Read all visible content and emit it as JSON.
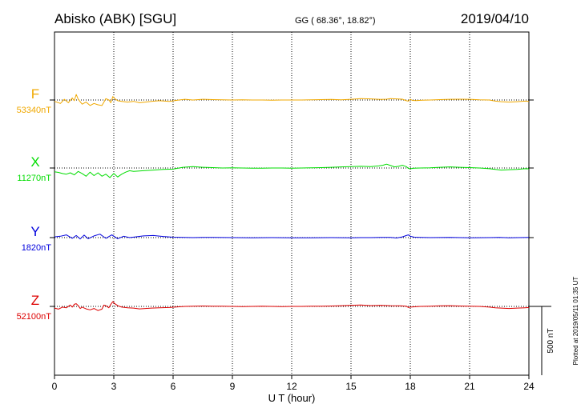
{
  "chart_data": {
    "type": "line",
    "title": "Abisko (ABK)  [SGU]",
    "coords": "GG ( 68.36°,  18.82°)",
    "date": "2019/04/10",
    "xlabel": "U T (hour)",
    "xlim": [
      0,
      24
    ],
    "xticks": [
      "0",
      "3",
      "6",
      "9",
      "12",
      "15",
      "18",
      "21",
      "24"
    ],
    "grid": true,
    "scale_label": "500 nT",
    "scale_nT": 500,
    "plotted_note": "Plotted at 2019/05/11 01:35 UT",
    "series": [
      {
        "name": "F",
        "baseline_label": "53340nT",
        "color": "#f0a800",
        "x": [
          0,
          0.3,
          0.5,
          0.7,
          0.9,
          1.0,
          1.1,
          1.2,
          1.4,
          1.6,
          1.8,
          2.0,
          2.2,
          2.4,
          2.5,
          2.6,
          2.75,
          2.85,
          2.95,
          3.05,
          3.2,
          3.4,
          3.7,
          4.0,
          4.3,
          4.6,
          4.9,
          5.3,
          5.8,
          6.3,
          6.6,
          7.0,
          7.5,
          8.0,
          8.5,
          9.0,
          9.5,
          10.0,
          10.5,
          11.0,
          11.5,
          12.0,
          12.5,
          13.0,
          13.5,
          14.0,
          14.5,
          15.0,
          15.5,
          16.0,
          16.5,
          16.8,
          17.0,
          17.3,
          17.6,
          17.8,
          17.9,
          18.0,
          18.1,
          18.3,
          18.6,
          19.0,
          19.5,
          20.0,
          20.5,
          21.0,
          21.5,
          22.0,
          22.3,
          22.6,
          23.0,
          23.4,
          23.8,
          24.0
        ],
        "y": [
          -10,
          -25,
          5,
          -20,
          15,
          -5,
          40,
          5,
          -30,
          -15,
          -40,
          -25,
          -35,
          -40,
          -15,
          10,
          0,
          -20,
          25,
          10,
          -5,
          -10,
          -15,
          -10,
          -20,
          -15,
          -10,
          -5,
          -10,
          0,
          5,
          0,
          5,
          3,
          2,
          0,
          2,
          0,
          0,
          -1,
          0,
          0,
          0,
          2,
          3,
          4,
          2,
          5,
          10,
          8,
          4,
          6,
          10,
          8,
          6,
          -5,
          -8,
          5,
          -3,
          -4,
          -2,
          0,
          3,
          5,
          6,
          5,
          2,
          0,
          -8,
          -12,
          -15,
          -12,
          -8,
          -10
        ]
      },
      {
        "name": "X",
        "baseline_label": "11270nT",
        "color": "#00dd00",
        "x": [
          0,
          0.2,
          0.4,
          0.6,
          0.8,
          1.0,
          1.2,
          1.4,
          1.6,
          1.8,
          2.0,
          2.2,
          2.4,
          2.6,
          2.8,
          3.0,
          3.2,
          3.4,
          3.6,
          3.8,
          4.0,
          4.5,
          5.0,
          5.5,
          6.0,
          6.5,
          7.0,
          7.5,
          8.0,
          8.5,
          9.0,
          9.5,
          10.0,
          10.5,
          11.0,
          11.5,
          12.0,
          12.5,
          13.0,
          13.5,
          14.0,
          14.5,
          15.0,
          15.5,
          16.0,
          16.4,
          16.6,
          16.8,
          17.0,
          17.2,
          17.4,
          17.6,
          17.8,
          17.9,
          18.0,
          18.2,
          18.5,
          19.0,
          19.5,
          20.0,
          20.5,
          21.0,
          21.5,
          22.0,
          22.3,
          22.6,
          23.0,
          23.4,
          23.8,
          24.0
        ],
        "y": [
          -28,
          -32,
          -40,
          -45,
          -35,
          -50,
          -25,
          -40,
          -60,
          -30,
          -55,
          -35,
          -60,
          -45,
          -70,
          -40,
          -65,
          -45,
          -30,
          -20,
          -25,
          -20,
          -15,
          -10,
          -8,
          5,
          10,
          5,
          3,
          0,
          2,
          0,
          -2,
          -1,
          0,
          0,
          -2,
          0,
          2,
          3,
          5,
          8,
          10,
          12,
          10,
          15,
          20,
          28,
          18,
          8,
          12,
          20,
          10,
          -3,
          -5,
          -2,
          0,
          2,
          5,
          8,
          5,
          3,
          0,
          -5,
          -10,
          -15,
          -12,
          -10,
          -5,
          -6
        ]
      },
      {
        "name": "Y",
        "baseline_label": "1820nT",
        "color": "#0000dd",
        "x": [
          0,
          0.3,
          0.6,
          0.9,
          1.1,
          1.3,
          1.5,
          1.7,
          2.0,
          2.3,
          2.6,
          2.9,
          3.2,
          3.5,
          3.8,
          4.1,
          4.5,
          5.0,
          5.5,
          6.0,
          6.5,
          7.0,
          7.5,
          8.0,
          9.0,
          10.0,
          11.0,
          12.0,
          13.0,
          14.0,
          15.0,
          15.5,
          16.0,
          16.5,
          17.0,
          17.3,
          17.6,
          17.8,
          17.9,
          18.0,
          18.2,
          18.5,
          19.0,
          20.0,
          21.0,
          22.0,
          22.5,
          23.0,
          23.5,
          24.0
        ],
        "y": [
          5,
          10,
          20,
          -5,
          15,
          -10,
          18,
          -8,
          12,
          25,
          -5,
          20,
          -8,
          10,
          0,
          5,
          12,
          15,
          8,
          3,
          2,
          0,
          2,
          1,
          0,
          -1,
          0,
          -2,
          -1,
          0,
          -1,
          0,
          0,
          2,
          1,
          -3,
          5,
          15,
          20,
          10,
          3,
          2,
          0,
          1,
          -1,
          0,
          2,
          -2,
          0,
          2
        ]
      },
      {
        "name": "Z",
        "baseline_label": "52100nT",
        "color": "#dd0000",
        "x": [
          0,
          0.2,
          0.4,
          0.6,
          0.8,
          0.9,
          1.0,
          1.1,
          1.2,
          1.3,
          1.4,
          1.6,
          1.8,
          2.0,
          2.2,
          2.4,
          2.5,
          2.6,
          2.75,
          2.85,
          2.95,
          3.05,
          3.2,
          3.4,
          3.7,
          4.0,
          4.3,
          4.6,
          4.9,
          5.3,
          5.8,
          6.3,
          6.6,
          7.0,
          7.5,
          8.0,
          8.5,
          9.0,
          9.5,
          10.0,
          10.5,
          11.0,
          11.5,
          12.0,
          12.5,
          13.0,
          13.5,
          14.0,
          14.5,
          15.0,
          15.5,
          16.0,
          16.5,
          17.0,
          17.5,
          17.8,
          17.9,
          18.0,
          18.2,
          18.5,
          19.0,
          19.5,
          20.0,
          20.5,
          21.0,
          21.5,
          22.0,
          22.3,
          22.6,
          23.0,
          23.4,
          23.8,
          24.0
        ],
        "y": [
          -12,
          -20,
          -5,
          -10,
          10,
          -5,
          15,
          20,
          5,
          -15,
          -5,
          -18,
          -25,
          -15,
          -30,
          -20,
          10,
          5,
          -10,
          15,
          35,
          20,
          5,
          -5,
          -10,
          -12,
          -18,
          -15,
          -12,
          -10,
          -8,
          -3,
          0,
          2,
          3,
          2,
          1,
          0,
          -1,
          0,
          1,
          0,
          -1,
          0,
          0,
          1,
          2,
          3,
          5,
          8,
          10,
          6,
          8,
          5,
          4,
          2,
          -8,
          -5,
          -3,
          0,
          2,
          4,
          5,
          3,
          2,
          0,
          -5,
          -10,
          -12,
          -15,
          -12,
          -10,
          -8
        ]
      }
    ]
  }
}
